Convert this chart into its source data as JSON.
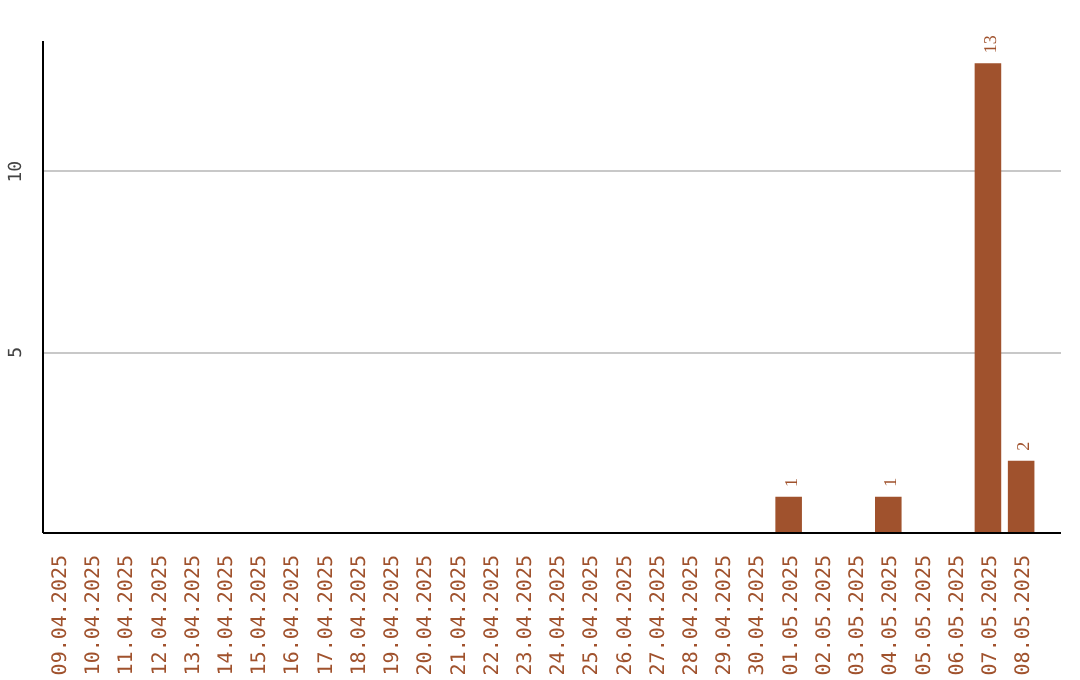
{
  "chart_data": {
    "type": "bar",
    "categories": [
      "09.04.2025",
      "10.04.2025",
      "11.04.2025",
      "12.04.2025",
      "13.04.2025",
      "14.04.2025",
      "15.04.2025",
      "16.04.2025",
      "17.04.2025",
      "18.04.2025",
      "19.04.2025",
      "20.04.2025",
      "21.04.2025",
      "22.04.2025",
      "23.04.2025",
      "24.04.2025",
      "25.04.2025",
      "26.04.2025",
      "27.04.2025",
      "28.04.2025",
      "29.04.2025",
      "30.04.2025",
      "01.05.2025",
      "02.05.2025",
      "03.05.2025",
      "04.05.2025",
      "05.05.2025",
      "06.05.2025",
      "07.05.2025",
      "08.05.2025"
    ],
    "values": [
      0,
      0,
      0,
      0,
      0,
      0,
      0,
      0,
      0,
      0,
      0,
      0,
      0,
      0,
      0,
      0,
      0,
      0,
      0,
      0,
      0,
      0,
      1,
      0,
      0,
      1,
      0,
      0,
      13,
      2
    ],
    "value_labels": [
      null,
      null,
      null,
      null,
      null,
      null,
      null,
      null,
      null,
      null,
      null,
      null,
      null,
      null,
      null,
      null,
      null,
      null,
      null,
      null,
      null,
      null,
      "1",
      null,
      null,
      "1",
      null,
      null,
      "13",
      "2"
    ],
    "color": "#a0522d",
    "ylim": [
      0,
      13.6
    ],
    "yticks": [
      5,
      10
    ],
    "grid": "y"
  }
}
